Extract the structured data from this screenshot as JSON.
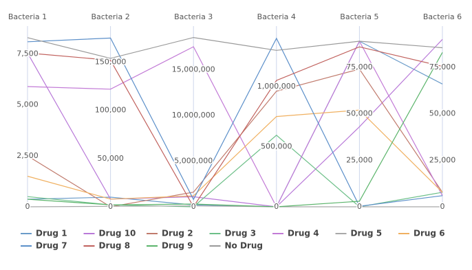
{
  "chart_data": {
    "type": "parallel",
    "dimensions": [
      {
        "name": "Bacteria 1",
        "ylim": [
          0,
          8800
        ],
        "yticks": [
          0,
          {
            "value": 2500,
            "label": "2,500"
          },
          {
            "value": 5000,
            "label": "5,000"
          },
          {
            "value": 7500,
            "label": "7,500"
          }
        ]
      },
      {
        "name": "Bacteria 2",
        "ylim": [
          0,
          186000
        ],
        "yticks": [
          0,
          {
            "value": 50000,
            "label": "50,000"
          },
          {
            "value": 100000,
            "label": "100,000"
          },
          {
            "value": 150000,
            "label": "150,000"
          }
        ]
      },
      {
        "name": "Bacteria 3",
        "ylim": [
          0,
          19600000
        ],
        "yticks": [
          0,
          {
            "value": 5000000,
            "label": "5,000,000"
          },
          {
            "value": 10000000,
            "label": "10,000,000"
          },
          {
            "value": 15000000,
            "label": "15,000,000"
          }
        ]
      },
      {
        "name": "Bacteria 4",
        "ylim": [
          0,
          1490000
        ],
        "yticks": [
          0,
          {
            "value": 500000,
            "label": "500,000"
          },
          {
            "value": 1000000,
            "label": "1,000,000"
          }
        ]
      },
      {
        "name": "Bacteria 5",
        "ylim": [
          0,
          96400
        ],
        "yticks": [
          0,
          {
            "value": 25000,
            "label": "25,000"
          },
          {
            "value": 50000,
            "label": "50,000"
          },
          {
            "value": 75000,
            "label": "75,000"
          }
        ]
      },
      {
        "name": "Bacteria 6",
        "ylim": [
          0,
          96400
        ],
        "yticks": [
          0,
          {
            "value": 25000,
            "label": "25,000"
          },
          {
            "value": 50000,
            "label": "50,000"
          },
          {
            "value": 75000,
            "label": "75,000"
          }
        ]
      }
    ],
    "series": [
      {
        "name": "Drug 1",
        "color": "#6a9bc9",
        "values": [
          370,
          10000,
          200000,
          0,
          89000,
          66000
        ]
      },
      {
        "name": "Drug 10",
        "color": "#b878d8",
        "values": [
          7550,
          8000,
          1100000,
          0,
          43000,
          90000
        ]
      },
      {
        "name": "Drug 2",
        "color": "#c07a6c",
        "values": [
          2500,
          0,
          1600000,
          960000,
          74000,
          7800
        ]
      },
      {
        "name": "Drug 3",
        "color": "#6cbf88",
        "values": [
          500,
          2000,
          0,
          595000,
          0,
          7800
        ]
      },
      {
        "name": "Drug 4",
        "color": "#c27ad6",
        "values": [
          5900,
          122000,
          17500000,
          0,
          89000,
          6000
        ]
      },
      {
        "name": "Drug 5",
        "color": "#a8a8a8",
        "values": [
          0,
          500,
          100000,
          0,
          0,
          0
        ]
      },
      {
        "name": "Drug 6",
        "color": "#f0b060",
        "values": [
          1500,
          8000,
          1200000,
          750000,
          52000,
          7800
        ]
      },
      {
        "name": "Drug 7",
        "color": "#5b8fc9",
        "values": [
          8100,
          175000,
          800000,
          1400000,
          300,
          6000
        ]
      },
      {
        "name": "Drug 8",
        "color": "#c0605c",
        "values": [
          7550,
          152000,
          0,
          1050000,
          86000,
          75500
        ]
      },
      {
        "name": "Drug 9",
        "color": "#5ab46a",
        "values": [
          370,
          2000,
          300000,
          0,
          3000,
          83000
        ]
      },
      {
        "name": "No Drug",
        "color": "#999999",
        "values": [
          8300,
          154000,
          18500000,
          1300000,
          89000,
          85500
        ]
      }
    ]
  }
}
